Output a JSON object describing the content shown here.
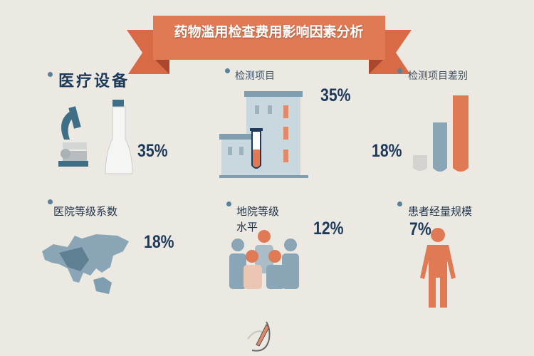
{
  "title": "药物滥用检查费用影响因素分析",
  "colors": {
    "background": "#ece9e3",
    "accent": "#e07a55",
    "primary": "#1e3a5a",
    "secondary": "#8aa6b6"
  },
  "items": [
    {
      "label": "医疗设备",
      "value": "35%",
      "icons": [
        "microscope-icon",
        "flask-icon"
      ]
    },
    {
      "label": "检测项目",
      "value": "35%",
      "icons": [
        "building-icon",
        "test-tube-icon"
      ]
    },
    {
      "label": "检测项目差别",
      "value": "18%",
      "icons": [
        "test-tubes-icon"
      ]
    },
    {
      "label": "医院等级系数",
      "value": "18%",
      "icons": [
        "map-icon"
      ]
    },
    {
      "label_line1": "地院等级",
      "label_line2": "水平",
      "value": "12%",
      "icons": [
        "people-icon"
      ]
    },
    {
      "label": "患者经量规模",
      "value": "7%",
      "icons": [
        "person-icon"
      ]
    }
  ],
  "footer_icon": "logo-icon"
}
